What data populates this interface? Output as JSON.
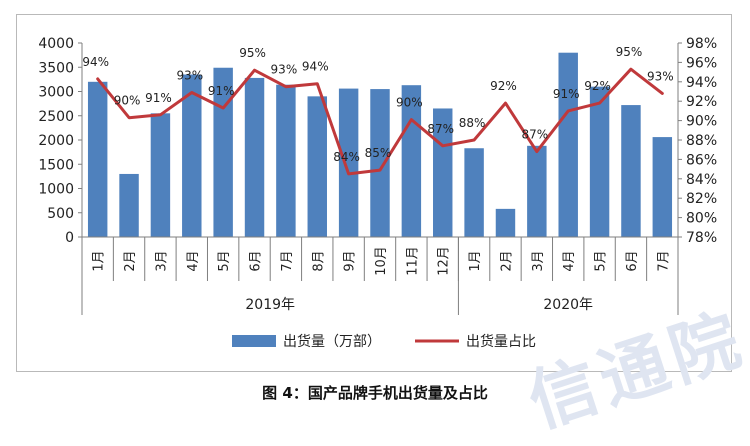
{
  "caption": "图 4：国产品牌手机出货量及占比",
  "watermark": "信通院",
  "chart_data": {
    "type": "bar",
    "colors": {
      "bar": "#4f81bd",
      "line": "#c0393b",
      "axis": "#7f7f7f"
    },
    "years": [
      {
        "label": "2019年",
        "months": [
          "1月",
          "2月",
          "3月",
          "4月",
          "5月",
          "6月",
          "7月",
          "8月",
          "9月",
          "10月",
          "11月",
          "12月"
        ]
      },
      {
        "label": "2020年",
        "months": [
          "1月",
          "2月",
          "3月",
          "4月",
          "5月",
          "6月",
          "7月"
        ]
      }
    ],
    "categories": [
      "2019-1月",
      "2019-2月",
      "2019-3月",
      "2019-4月",
      "2019-5月",
      "2019-6月",
      "2019-7月",
      "2019-8月",
      "2019-9月",
      "2019-10月",
      "2019-11月",
      "2019-12月",
      "2020-1月",
      "2020-2月",
      "2020-3月",
      "2020-4月",
      "2020-5月",
      "2020-6月",
      "2020-7月"
    ],
    "series": [
      {
        "name": "出货量（万部）",
        "type": "bar",
        "axis": "left",
        "values": [
          3200,
          1300,
          2550,
          3350,
          3490,
          3280,
          3140,
          2900,
          3060,
          3050,
          3130,
          2650,
          1830,
          580,
          1880,
          3800,
          3100,
          2720,
          2060
        ]
      },
      {
        "name": "出货量占比",
        "type": "line",
        "axis": "right",
        "values": [
          94.3,
          90.3,
          90.6,
          92.9,
          91.3,
          95.2,
          93.5,
          93.8,
          84.5,
          84.9,
          90.1,
          87.4,
          88.0,
          91.8,
          86.8,
          91.0,
          91.8,
          95.3,
          92.8
        ],
        "labels": [
          "94%",
          "90%",
          "91%",
          "93%",
          "91%",
          "95%",
          "93%",
          "94%",
          "84%",
          "85%",
          "90%",
          "87%",
          "88%",
          "92%",
          "87%",
          "91%",
          "92%",
          "95%",
          "93%"
        ]
      }
    ],
    "y_left": {
      "min": 0,
      "max": 4000,
      "step": 500,
      "ticks": [
        "0",
        "500",
        "1000",
        "1500",
        "2000",
        "2500",
        "3000",
        "3500",
        "4000"
      ]
    },
    "y_right": {
      "min": 78,
      "max": 98,
      "step": 2,
      "ticks": [
        "78%",
        "80%",
        "82%",
        "84%",
        "86%",
        "88%",
        "90%",
        "92%",
        "94%",
        "96%",
        "98%"
      ]
    },
    "grid": false,
    "legend_position": "bottom"
  }
}
